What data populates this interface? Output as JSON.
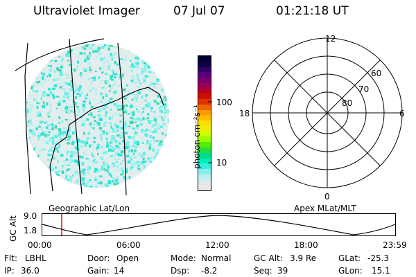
{
  "header": {
    "instrument": "Ultraviolet Imager",
    "date": "07 Jul 07",
    "time": "01:21:18 UT"
  },
  "colorbar": {
    "label": "photon cm⁻²s⁻¹",
    "ticks": [
      "100",
      "10"
    ],
    "colors": [
      "#000033",
      "#110044",
      "#330066",
      "#55007a",
      "#77006a",
      "#990055",
      "#bb0022",
      "#cc1100",
      "#dd3300",
      "#ee6600",
      "#ff9900",
      "#ffbb00",
      "#ffdd00",
      "#eeee00",
      "#ccff00",
      "#99ff00",
      "#55ee00",
      "#22dd44",
      "#00dd88",
      "#00eebb",
      "#33eedd",
      "#88eeee",
      "#bbf0f0",
      "#dde8e8",
      "#e8e8e8"
    ]
  },
  "polar": {
    "labels": {
      "mlt_12": "12",
      "mlt_18": "18",
      "mlt_6": "6",
      "mlt_0": "0",
      "lat_60": "60",
      "lat_70": "70",
      "lat_80": "80"
    }
  },
  "timeline": {
    "ylabel": "GC Alt",
    "y_ticks": [
      "9.0",
      "1.8"
    ],
    "left_caption": "Geographic Lat/Lon",
    "right_caption": "Apex MLat/MLT",
    "x_ticks": [
      "00:00",
      "06:00",
      "12:00",
      "18:00",
      "23:59"
    ],
    "marker_color": "#cc0000"
  },
  "info": {
    "row1": [
      {
        "label": "Flt:",
        "value": "LBHL"
      },
      {
        "label": "Door:",
        "value": "Open"
      },
      {
        "label": "Mode:",
        "value": "Normal"
      },
      {
        "label": "GC Alt:",
        "value": "3.9 Re"
      },
      {
        "label": "GLat:",
        "value": "-25.3"
      }
    ],
    "row2": [
      {
        "label": "IP:",
        "value": "36.0"
      },
      {
        "label": "Gain:",
        "value": "14"
      },
      {
        "label": "Dsp:",
        "value": "-8.2"
      },
      {
        "label": "Seq:",
        "value": "39"
      },
      {
        "label": "GLon:",
        "value": "15.1"
      }
    ]
  }
}
